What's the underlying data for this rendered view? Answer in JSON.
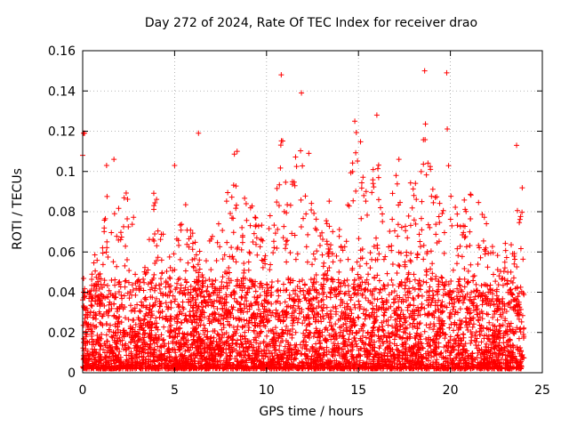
{
  "chart_data": {
    "type": "scatter",
    "title": "Day 272 of 2024, Rate Of TEC Index for receiver drao",
    "xlabel": "GPS time / hours",
    "ylabel": "ROTI / TECUs",
    "xlim": [
      0,
      25
    ],
    "ylim": [
      0,
      0.16
    ],
    "xticks": [
      0,
      5,
      10,
      15,
      20,
      25
    ],
    "yticks": [
      0,
      0.02,
      0.04,
      0.06,
      0.08,
      0.1,
      0.12,
      0.14,
      0.16
    ],
    "xtick_labels": [
      "0",
      "5",
      "10",
      "15",
      "20",
      "25"
    ],
    "ytick_labels": [
      "0",
      "0.02",
      "0.04",
      "0.06",
      "0.08",
      "0.1",
      "0.12",
      "0.14",
      "0.16"
    ],
    "grid": true,
    "legend": "none",
    "marker": "+",
    "color": "#ff0000",
    "x_range_of_data": [
      0,
      24
    ],
    "envelope": {
      "x": [
        0,
        0.1,
        0.2,
        0.5,
        1.0,
        1.5,
        2.0,
        2.5,
        2.8,
        3.2,
        3.6,
        4.0,
        4.5,
        5.0,
        5.5,
        6.0,
        6.3,
        7.0,
        7.5,
        8.0,
        8.3,
        8.6,
        9.0,
        9.5,
        10.0,
        10.4,
        10.8,
        11.0,
        11.3,
        11.7,
        12.0,
        12.5,
        13.0,
        13.5,
        14.0,
        14.5,
        14.8,
        15.0,
        15.5,
        16.0,
        16.5,
        17.0,
        17.5,
        18.0,
        18.3,
        18.6,
        18.9,
        19.2,
        19.5,
        19.8,
        20.0,
        20.5,
        21.0,
        21.5,
        22.0,
        22.5,
        23.0,
        23.5,
        23.8,
        24.0
      ],
      "y": [
        0.12,
        0.06,
        0.035,
        0.06,
        0.06,
        0.1,
        0.08,
        0.09,
        0.085,
        0.04,
        0.085,
        0.09,
        0.06,
        0.06,
        0.085,
        0.07,
        0.06,
        0.065,
        0.08,
        0.09,
        0.11,
        0.08,
        0.09,
        0.08,
        0.065,
        0.09,
        0.145,
        0.1,
        0.08,
        0.14,
        0.1,
        0.085,
        0.07,
        0.09,
        0.07,
        0.09,
        0.125,
        0.12,
        0.09,
        0.115,
        0.06,
        0.1,
        0.07,
        0.105,
        0.08,
        0.15,
        0.11,
        0.09,
        0.08,
        0.15,
        0.1,
        0.07,
        0.1,
        0.085,
        0.08,
        0.06,
        0.07,
        0.06,
        0.113,
        0.08
      ]
    },
    "outliers": [
      {
        "x": 0.05,
        "y": 0.119
      },
      {
        "x": 0.1,
        "y": 0.119
      },
      {
        "x": 0.0,
        "y": 0.108
      },
      {
        "x": 6.3,
        "y": 0.119
      },
      {
        "x": 10.8,
        "y": 0.148
      },
      {
        "x": 11.9,
        "y": 0.139
      },
      {
        "x": 18.6,
        "y": 0.15
      },
      {
        "x": 19.8,
        "y": 0.149
      },
      {
        "x": 16.0,
        "y": 0.128
      },
      {
        "x": 14.8,
        "y": 0.125
      },
      {
        "x": 23.6,
        "y": 0.113
      },
      {
        "x": 8.4,
        "y": 0.11
      },
      {
        "x": 5.0,
        "y": 0.103
      },
      {
        "x": 1.3,
        "y": 0.103
      },
      {
        "x": 1.7,
        "y": 0.106
      },
      {
        "x": 17.2,
        "y": 0.106
      },
      {
        "x": 12.3,
        "y": 0.109
      }
    ],
    "point_count": 5200,
    "seed": 272
  }
}
